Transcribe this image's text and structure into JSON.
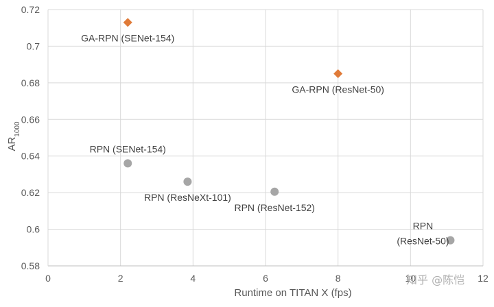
{
  "chart_data": {
    "type": "scatter",
    "xlabel": "Runtime on TITAN X (fps)",
    "ylabel": "AR",
    "ylabel_subscript": "1000",
    "xlim": [
      0,
      12
    ],
    "ylim": [
      0.58,
      0.72
    ],
    "x_ticks": [
      "0",
      "2",
      "4",
      "6",
      "8",
      "10",
      "12"
    ],
    "y_ticks": [
      "0.58",
      "0.6",
      "0.62",
      "0.64",
      "0.66",
      "0.68",
      "0.7",
      "0.72"
    ],
    "grid": true,
    "series": [
      {
        "marker": "diamond",
        "color": "#e07b39",
        "points": [
          {
            "x": 2.2,
            "y": 0.713,
            "label": [
              "GA-RPN (SENet-154)"
            ],
            "label_pos": "below"
          },
          {
            "x": 8.0,
            "y": 0.685,
            "label": [
              "GA-RPN (ResNet-50)"
            ],
            "label_pos": "below"
          }
        ]
      },
      {
        "marker": "circle",
        "color": "#a6a6a6",
        "points": [
          {
            "x": 2.2,
            "y": 0.636,
            "label": [
              "RPN (SENet-154)"
            ],
            "label_pos": "above"
          },
          {
            "x": 3.85,
            "y": 0.626,
            "label": [
              "RPN (ResNeXt-101)"
            ],
            "label_pos": "below"
          },
          {
            "x": 6.25,
            "y": 0.6205,
            "label": [
              "RPN (ResNet-152)"
            ],
            "label_pos": "below"
          },
          {
            "x": 11.1,
            "y": 0.594,
            "label": [
              "RPN",
              "(ResNet-50)"
            ],
            "label_pos": "left"
          }
        ]
      }
    ]
  },
  "watermark": "知乎 @陈恺"
}
